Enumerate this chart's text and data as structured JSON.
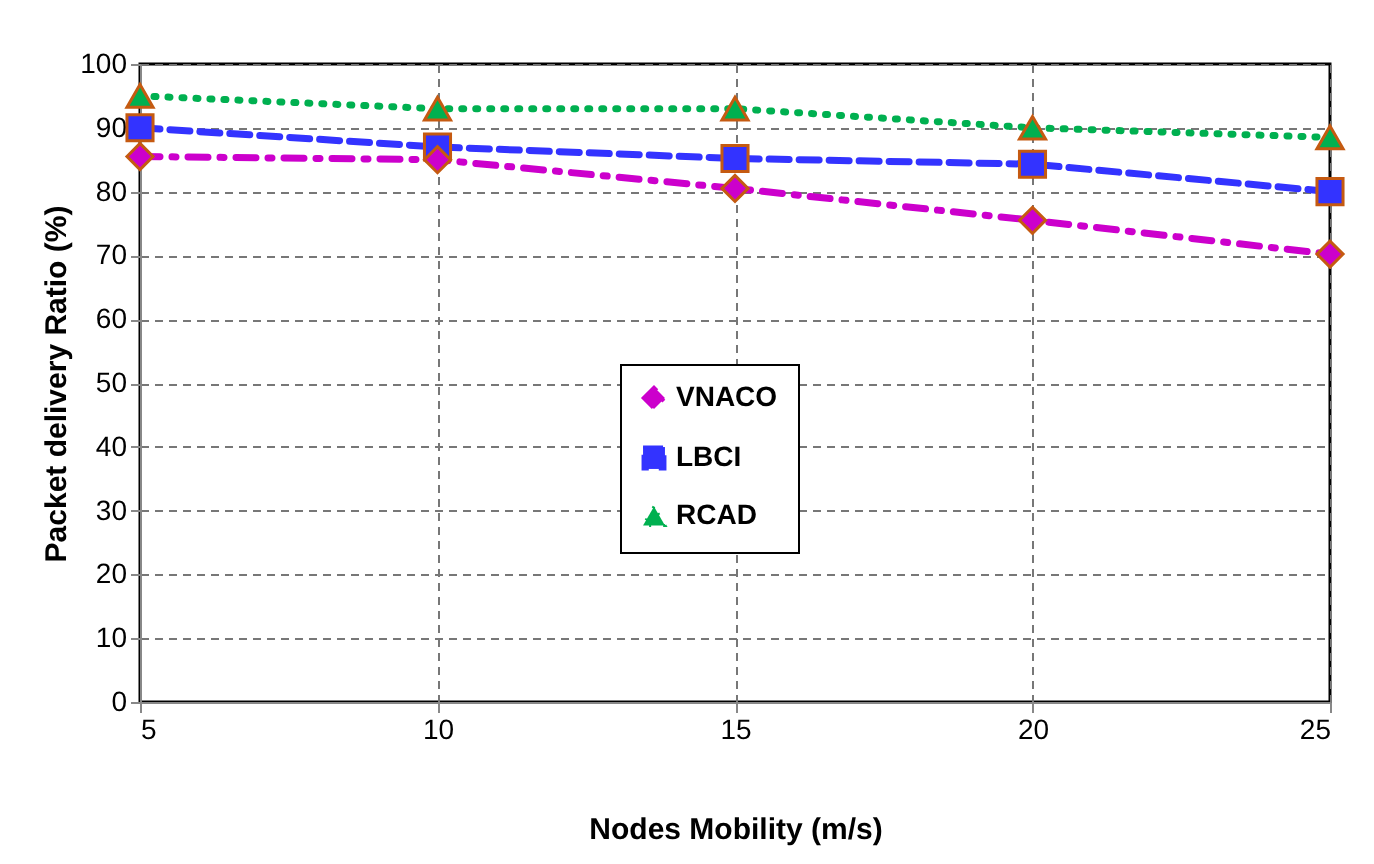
{
  "chart_data": {
    "type": "line",
    "xlabel": "Nodes Mobility (m/s)",
    "ylabel": "Packet delivery Ratio (%)",
    "x": [
      5,
      10,
      15,
      20,
      25
    ],
    "xlim": [
      5,
      25
    ],
    "xticks": [
      5,
      10,
      15,
      20,
      25
    ],
    "ylim": [
      0,
      100
    ],
    "yticks": [
      0,
      10,
      20,
      30,
      40,
      50,
      60,
      70,
      80,
      90,
      100
    ],
    "grid": true,
    "legend": "center",
    "series": [
      {
        "name": "VNACO",
        "color": "#cc00cc",
        "marker": "diamond",
        "line_style": "dashdot",
        "values": [
          85.5,
          85,
          80.5,
          75.5,
          70.2
        ]
      },
      {
        "name": "LBCI",
        "color": "#3333ff",
        "marker": "square",
        "line_style": "dashed",
        "values": [
          90,
          87,
          85.2,
          84.3,
          80
        ]
      },
      {
        "name": "RCAD",
        "color": "#00b050",
        "marker": "triangle",
        "line_style": "dotted",
        "values": [
          95,
          93,
          93,
          90,
          88.5
        ]
      }
    ]
  }
}
